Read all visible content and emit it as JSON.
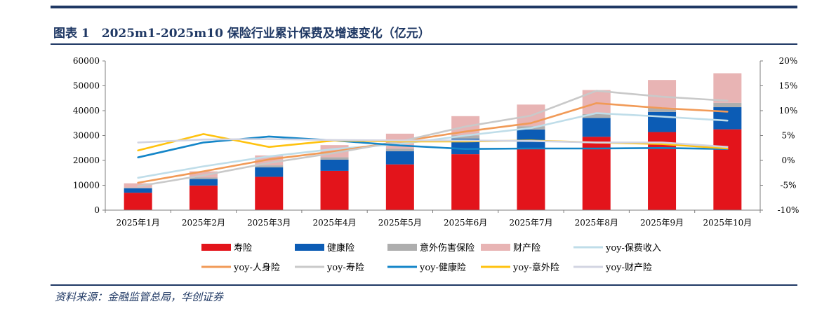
{
  "title": "图表 1　2025m1-2025m10 保险行业累计保费及增速变化（亿元）",
  "source": "资料来源：金融监管总局，华创证券",
  "colors": {
    "life": "#e3141b",
    "health": "#0c5cb5",
    "accident": "#aeaeae",
    "property": "#e8b4b4",
    "yoy_premium": "#bfdde9",
    "yoy_personal": "#f19a57",
    "yoy_life": "#c9c9c9",
    "yoy_health": "#1385c8",
    "yoy_accident": "#ffc20e",
    "yoy_property": "#d2d4e2",
    "brand": "#1f3864"
  },
  "chart_data": {
    "type": "bar",
    "stacked": true,
    "categories": [
      "2025年1月",
      "2025年2月",
      "2025年3月",
      "2025年4月",
      "2025年5月",
      "2025年6月",
      "2025年7月",
      "2025年8月",
      "2025年9月",
      "2025年10月"
    ],
    "y_left": {
      "ylim": [
        0,
        60000
      ],
      "ticks": [
        "0",
        "10000",
        "20000",
        "30000",
        "40000",
        "50000",
        "60000"
      ]
    },
    "y_right": {
      "ylim": [
        -10,
        20
      ],
      "ticks": [
        "-10%",
        "-5%",
        "0%",
        "5%",
        "10%",
        "15%",
        "20%"
      ]
    },
    "bar_series": [
      {
        "key": "life",
        "name": "寿险",
        "values": [
          7000,
          9900,
          13400,
          15800,
          18400,
          22500,
          24600,
          29500,
          31400,
          32500
        ]
      },
      {
        "key": "health",
        "name": "健康险",
        "values": [
          1800,
          2600,
          3800,
          4500,
          5300,
          6300,
          7800,
          7600,
          8100,
          8900
        ]
      },
      {
        "key": "accident",
        "name": "意外伤害保险",
        "values": [
          300,
          600,
          800,
          950,
          1050,
          1200,
          1350,
          1500,
          1650,
          1750
        ]
      },
      {
        "key": "property",
        "name": "财产险",
        "values": [
          1700,
          2500,
          4000,
          4900,
          6000,
          7800,
          8700,
          9700,
          11200,
          11900
        ]
      }
    ],
    "line_series": [
      {
        "key": "yoy_premium",
        "name": "yoy-保费收入",
        "values": [
          -3.5,
          -1.2,
          0.8,
          2.3,
          3.3,
          5.0,
          6.5,
          9.5,
          8.8,
          8.0
        ]
      },
      {
        "key": "yoy_personal",
        "name": "yoy-人身险",
        "values": [
          -4.5,
          -2.2,
          0.2,
          1.8,
          3.8,
          5.8,
          7.5,
          11.5,
          10.5,
          9.8
        ]
      },
      {
        "key": "yoy_life",
        "name": "yoy-寿险",
        "values": [
          -5.2,
          -3.0,
          -0.5,
          1.5,
          3.8,
          6.8,
          9.0,
          14.0,
          12.8,
          12.0
        ]
      },
      {
        "key": "yoy_health",
        "name": "yoy-健康险",
        "values": [
          0.6,
          3.6,
          4.8,
          4.0,
          3.0,
          2.3,
          2.4,
          2.4,
          2.5,
          2.3
        ]
      },
      {
        "key": "yoy_accident",
        "name": "yoy-意外险",
        "values": [
          2.0,
          5.3,
          2.7,
          4.0,
          3.8,
          3.8,
          4.0,
          3.6,
          3.3,
          2.4
        ]
      },
      {
        "key": "yoy_property",
        "name": "yoy-财产险",
        "values": [
          3.6,
          4.2,
          4.3,
          4.1,
          4.0,
          4.0,
          3.9,
          3.6,
          3.6,
          2.7
        ]
      }
    ],
    "legend": {
      "placement": "bottom",
      "rows": [
        [
          "life",
          "health",
          "accident",
          "property",
          "yoy_premium"
        ],
        [
          "yoy_personal",
          "yoy_life",
          "yoy_health",
          "yoy_accident",
          "yoy_property"
        ]
      ]
    },
    "grid": false
  }
}
